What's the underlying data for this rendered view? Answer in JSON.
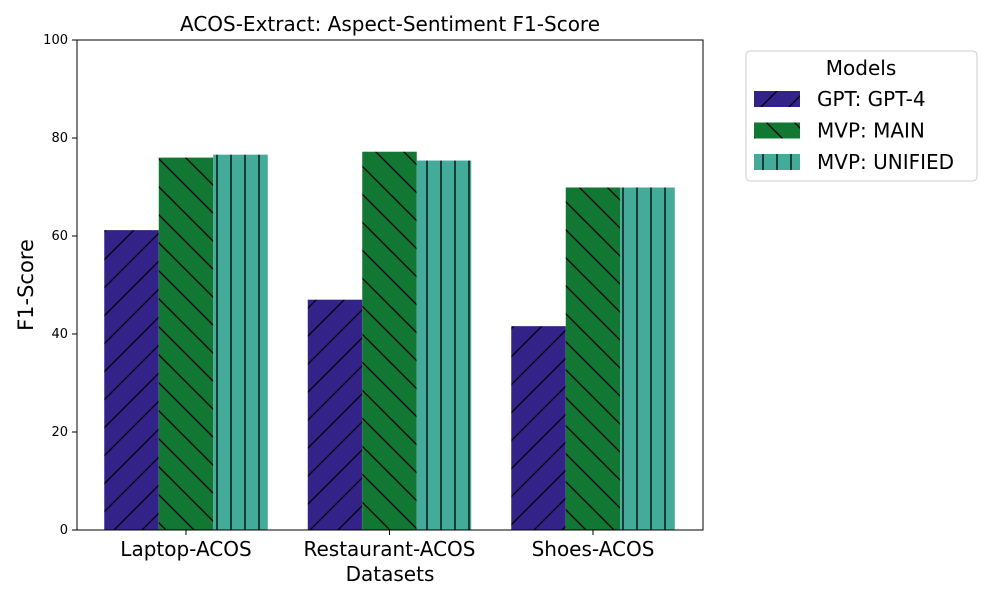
{
  "chart_data": {
    "type": "bar",
    "title": "ACOS-Extract: Aspect-Sentiment F1-Score",
    "xlabel": "Datasets",
    "ylabel": "F1-Score",
    "ylim": [
      0,
      100
    ],
    "yticks": [
      0,
      20,
      40,
      60,
      80,
      100
    ],
    "categories": [
      "Laptop-ACOS",
      "Restaurant-ACOS",
      "Shoes-ACOS"
    ],
    "series": [
      {
        "name": "GPT: GPT-4",
        "color": "#332288",
        "hatch": "/",
        "values": [
          61.2,
          47.0,
          41.6
        ]
      },
      {
        "name": "MVP: MAIN",
        "color": "#117733",
        "hatch": "\\",
        "values": [
          76.0,
          77.2,
          69.9
        ]
      },
      {
        "name": "MVP: UNIFIED",
        "color": "#44AA99",
        "hatch": "|",
        "values": [
          76.6,
          75.4,
          69.9
        ]
      }
    ],
    "legend": {
      "title": "Models",
      "placement": "outside-right-top"
    },
    "grid": false
  }
}
